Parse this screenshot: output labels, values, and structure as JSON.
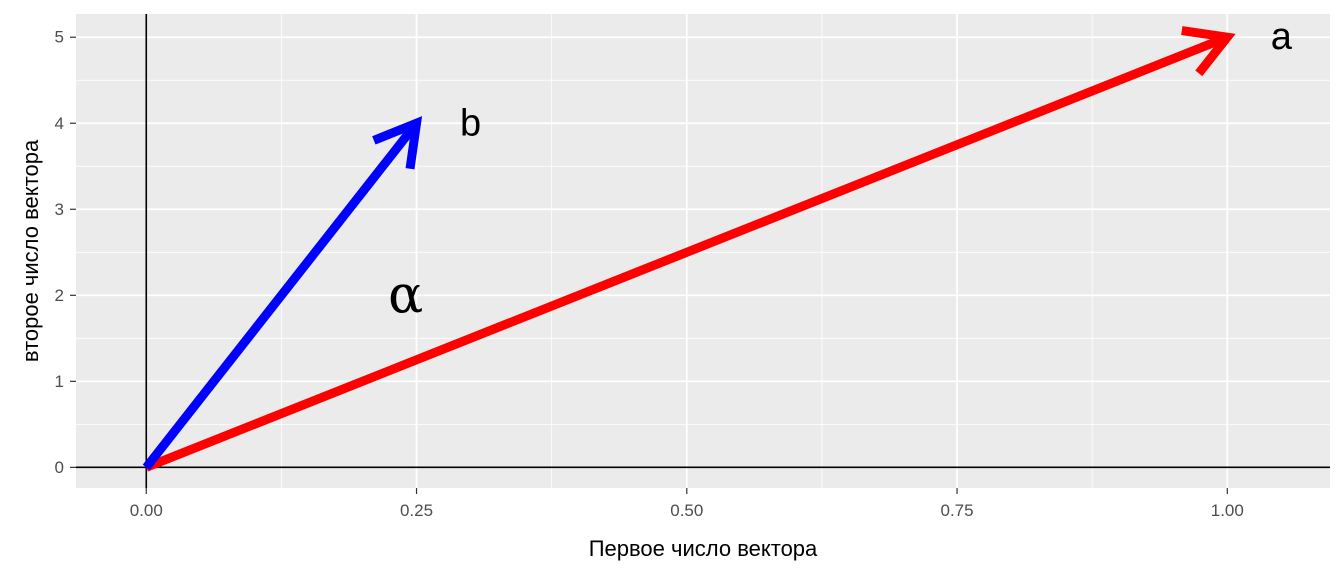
{
  "chart_data": {
    "type": "vector",
    "xlabel": "Первое число вектора",
    "ylabel": "второе число вектора",
    "xlim": [
      -0.065,
      1.095
    ],
    "ylim": [
      -0.24,
      5.27
    ],
    "x_ticks": [
      0,
      0.25,
      0.5,
      0.75,
      1
    ],
    "x_tick_labels": [
      "0.00",
      "0.25",
      "0.50",
      "0.75",
      "1.00"
    ],
    "y_ticks": [
      0,
      1,
      2,
      3,
      4,
      5
    ],
    "y_tick_labels": [
      "0",
      "1",
      "2",
      "3",
      "4",
      "5"
    ],
    "reference_lines": {
      "x": 0,
      "y": 0
    },
    "vectors": [
      {
        "label": "a",
        "x0": 0,
        "y0": 0,
        "x1": 1,
        "y1": 5,
        "color": "#ff0000"
      },
      {
        "label": "b",
        "x0": 0,
        "y0": 0,
        "x1": 0.25,
        "y1": 4,
        "color": "#0000ff"
      }
    ],
    "vector_labels": [
      {
        "text": "a",
        "x": 1.05,
        "y": 5
      },
      {
        "text": "b",
        "x": 0.3,
        "y": 4
      }
    ],
    "annotations": [
      {
        "text": "α",
        "x": 0.24,
        "y": 2
      }
    ],
    "panel_background": "#ebebeb",
    "grid_color": "#ffffff",
    "legend": "none"
  }
}
